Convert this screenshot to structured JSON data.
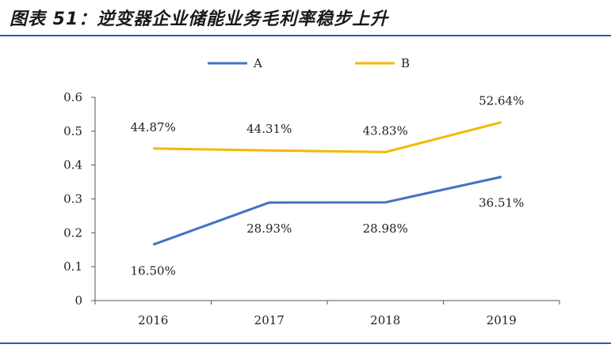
{
  "header": {
    "title": "图表 51：逆变器企业储能业务毛利率稳步上升"
  },
  "chart_data": {
    "type": "line",
    "title": "",
    "xlabel": "",
    "ylabel": "",
    "categories": [
      "2016",
      "2017",
      "2018",
      "2019"
    ],
    "ylim": [
      0,
      0.6
    ],
    "yticks": [
      "0",
      "0.1",
      "0.2",
      "0.3",
      "0.4",
      "0.5",
      "0.6"
    ],
    "grid": false,
    "legend_position": "top-center",
    "series": [
      {
        "name": "A",
        "color": "#4472c4",
        "values": [
          0.165,
          0.2893,
          0.2898,
          0.3651
        ],
        "labels": [
          "16.50%",
          "28.93%",
          "28.98%",
          "36.51%"
        ],
        "label_side": [
          "below",
          "below",
          "below",
          "below"
        ]
      },
      {
        "name": "B",
        "color": "#f5b800",
        "values": [
          0.4487,
          0.4431,
          0.4383,
          0.5264
        ],
        "labels": [
          "44.87%",
          "44.31%",
          "43.83%",
          "52.64%"
        ],
        "label_side": [
          "above",
          "above",
          "above",
          "above"
        ]
      }
    ]
  }
}
